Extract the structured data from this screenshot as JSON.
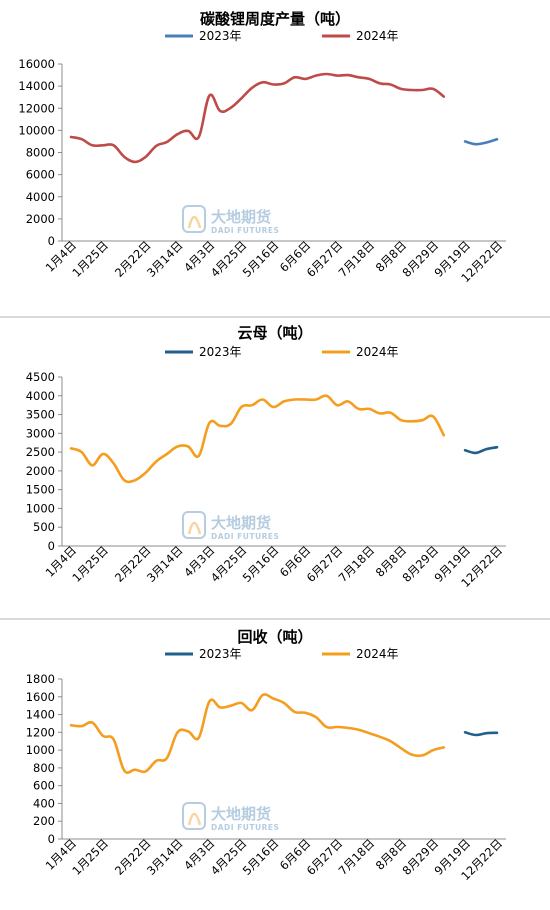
{
  "colors": {
    "series2023_chart1": "#4a7ebb",
    "series2024_chart1": "#be4b48",
    "series2023": "#1f5f8b",
    "series2024": "#f59d1e",
    "axis": "#8c8c8c",
    "watermark_blue": "#2f6fa8",
    "watermark_orange": "#f0a030"
  },
  "watermark": {
    "cn": "大地期货",
    "en": "DADI FUTURES"
  },
  "chart_data": [
    {
      "type": "line",
      "title": "碳酸锂周度产量（吨）",
      "ylim": [
        0,
        16000
      ],
      "yticks": [
        0,
        2000,
        4000,
        6000,
        8000,
        10000,
        12000,
        14000,
        16000
      ],
      "xticklabels": [
        "1月4日",
        "1月25日",
        "2月22日",
        "3月14日",
        "4月3日",
        "4月25日",
        "5月16日",
        "6月6日",
        "6月27日",
        "7月18日",
        "8月8日",
        "8月29日",
        "9月19日",
        "12月22日"
      ],
      "grid": false,
      "legend_position": "top",
      "series": [
        {
          "name": "2023年",
          "x": [
            37,
            38,
            39,
            40
          ],
          "values": [
            9000,
            8750,
            8900,
            9200
          ]
        },
        {
          "name": "2024年",
          "x": [
            0,
            1,
            2,
            3,
            4,
            5,
            6,
            7,
            8,
            9,
            10,
            11,
            12,
            13,
            14,
            15,
            16,
            17,
            18,
            19,
            20,
            21,
            22,
            23,
            24,
            25,
            26,
            27,
            28,
            29,
            30,
            31,
            32,
            33,
            34,
            35
          ],
          "values": [
            9400,
            9200,
            8650,
            8650,
            8650,
            7600,
            7150,
            7600,
            8600,
            8950,
            9650,
            9950,
            9400,
            13150,
            11750,
            12050,
            12900,
            13850,
            14350,
            14150,
            14250,
            14800,
            14650,
            14950,
            15100,
            14950,
            15000,
            14800,
            14650,
            14250,
            14150,
            13750,
            13650,
            13650,
            13750,
            13050
          ]
        }
      ]
    },
    {
      "type": "line",
      "title": "云母（吨）",
      "ylim": [
        0,
        4500
      ],
      "yticks": [
        0,
        500,
        1000,
        1500,
        2000,
        2500,
        3000,
        3500,
        4000,
        4500
      ],
      "xticklabels": [
        "1月4日",
        "1月25日",
        "2月22日",
        "3月14日",
        "4月3日",
        "4月25日",
        "5月16日",
        "6月6日",
        "6月27日",
        "7月18日",
        "8月8日",
        "8月29日",
        "9月19日",
        "12月22日"
      ],
      "grid": false,
      "legend_position": "top",
      "series": [
        {
          "name": "2023年",
          "x": [
            37,
            38,
            39,
            40
          ],
          "values": [
            2550,
            2480,
            2580,
            2630
          ]
        },
        {
          "name": "2024年",
          "x": [
            0,
            1,
            2,
            3,
            4,
            5,
            6,
            7,
            8,
            9,
            10,
            11,
            12,
            13,
            14,
            15,
            16,
            17,
            18,
            19,
            20,
            21,
            22,
            23,
            24,
            25,
            26,
            27,
            28,
            29,
            30,
            31,
            32,
            33,
            34,
            35
          ],
          "values": [
            2600,
            2500,
            2150,
            2450,
            2200,
            1750,
            1750,
            1950,
            2250,
            2450,
            2650,
            2650,
            2400,
            3280,
            3200,
            3250,
            3700,
            3750,
            3900,
            3700,
            3850,
            3900,
            3900,
            3900,
            4000,
            3750,
            3850,
            3650,
            3650,
            3530,
            3550,
            3350,
            3320,
            3350,
            3450,
            2950
          ]
        }
      ]
    },
    {
      "type": "line",
      "title": "回收（吨）",
      "ylim": [
        0,
        1800
      ],
      "yticks": [
        0,
        200,
        400,
        600,
        800,
        1000,
        1200,
        1400,
        1600,
        1800
      ],
      "xticklabels": [
        "1月4日",
        "1月25日",
        "2月22日",
        "3月14日",
        "4月3日",
        "4月25日",
        "5月16日",
        "6月6日",
        "6月27日",
        "7月18日",
        "8月8日",
        "8月29日",
        "9月19日",
        "12月22日"
      ],
      "grid": false,
      "legend_position": "top",
      "series": [
        {
          "name": "2023年",
          "x": [
            37,
            38,
            39,
            40
          ],
          "values": [
            1200,
            1170,
            1190,
            1195
          ]
        },
        {
          "name": "2024年",
          "x": [
            0,
            1,
            2,
            3,
            4,
            5,
            6,
            7,
            8,
            9,
            10,
            11,
            12,
            13,
            14,
            15,
            16,
            17,
            18,
            19,
            20,
            21,
            22,
            23,
            24,
            25,
            26,
            27,
            28,
            29,
            30,
            31,
            32,
            33,
            34,
            35
          ],
          "values": [
            1280,
            1270,
            1310,
            1160,
            1120,
            770,
            780,
            760,
            880,
            910,
            1200,
            1210,
            1140,
            1550,
            1480,
            1500,
            1530,
            1450,
            1620,
            1580,
            1530,
            1430,
            1420,
            1370,
            1260,
            1260,
            1250,
            1230,
            1190,
            1150,
            1100,
            1020,
            950,
            940,
            1000,
            1030
          ]
        }
      ]
    }
  ]
}
